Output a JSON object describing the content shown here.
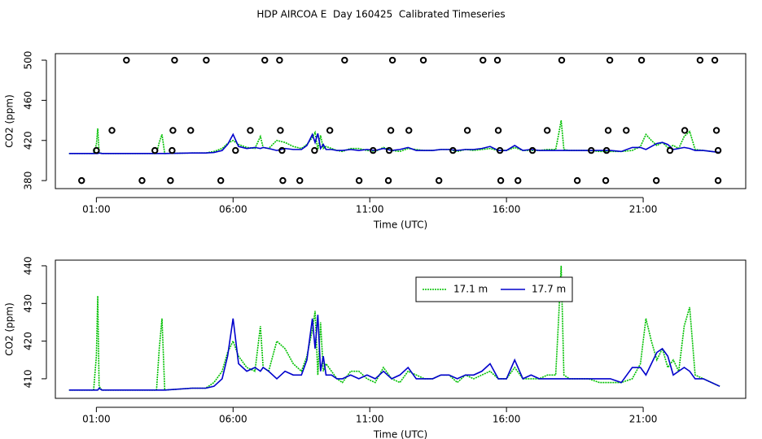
{
  "chart_data": [
    {
      "type": "line",
      "title": "HDP AIRCOA E  Day 160425  Calibrated Timeseries",
      "x_label": "Time (UTC)",
      "y_label": "CO2 (ppm)",
      "xlim": [
        -0.5,
        24.75
      ],
      "ylim": [
        372,
        506.5
      ],
      "xticks": [
        {
          "value": 1,
          "label": "01:00"
        },
        {
          "value": 6,
          "label": "06:00"
        },
        {
          "value": 11,
          "label": "11:00"
        },
        {
          "value": 16,
          "label": "16:00"
        },
        {
          "value": 21,
          "label": "21:00"
        }
      ],
      "yticks": [
        380,
        420,
        460,
        500
      ],
      "x": [
        0,
        0.9,
        1.0,
        1.05,
        1.1,
        1.2,
        2.5,
        3.2,
        3.3,
        3.4,
        3.5,
        4.5,
        5.0,
        5.3,
        5.6,
        5.8,
        6.0,
        6.2,
        6.5,
        6.8,
        7.0,
        7.1,
        7.3,
        7.6,
        7.9,
        8.2,
        8.5,
        8.7,
        8.9,
        9.0,
        9.1,
        9.2,
        9.3,
        9.4,
        9.6,
        9.8,
        10.0,
        10.3,
        10.6,
        10.9,
        11.2,
        11.5,
        11.8,
        12.1,
        12.4,
        12.7,
        13.0,
        13.3,
        13.6,
        13.9,
        14.2,
        14.5,
        14.8,
        15.1,
        15.4,
        15.7,
        16.0,
        16.3,
        16.6,
        16.9,
        17.2,
        17.5,
        17.8,
        17.9,
        18.0,
        18.1,
        18.3,
        18.6,
        19.0,
        19.4,
        19.8,
        20.2,
        20.6,
        20.9,
        21.1,
        21.3,
        21.5,
        21.7,
        21.9,
        22.1,
        22.3,
        22.5,
        22.7,
        22.9,
        23.2,
        23.5,
        23.8
      ],
      "series": [
        {
          "color": "#00c000",
          "values": [
            407,
            407,
            416,
            432,
            408,
            407,
            407,
            407,
            418,
            426,
            407,
            407.5,
            407.5,
            409,
            412,
            417,
            420,
            416,
            413,
            412,
            424,
            413,
            412,
            420,
            418,
            414,
            412,
            416,
            423,
            428,
            411,
            425,
            412,
            414,
            412,
            410,
            409,
            412,
            412,
            410,
            409,
            413,
            410,
            409,
            412,
            411,
            410,
            410,
            411,
            411,
            409,
            411,
            410,
            411,
            412,
            410,
            410,
            413,
            410,
            410,
            410,
            411,
            411,
            425,
            440,
            411,
            410,
            410,
            410,
            409,
            409,
            409,
            410,
            414,
            426,
            420,
            415,
            418,
            413,
            415,
            412,
            424,
            429,
            411,
            410,
            409,
            408
          ]
        },
        {
          "color": "#0000cc",
          "values": [
            407,
            407,
            407,
            407,
            407.5,
            407,
            407,
            407,
            407,
            407,
            407,
            407.5,
            407.5,
            408,
            410,
            416,
            426,
            414,
            412,
            413,
            412,
            413,
            412,
            410,
            412,
            411,
            411,
            415,
            426,
            418,
            427,
            412,
            416,
            411,
            411,
            410,
            410,
            411,
            410,
            411,
            410,
            412,
            410,
            411,
            413,
            410,
            410,
            410,
            411,
            411,
            410,
            411,
            411,
            412,
            414,
            410,
            410,
            415,
            410,
            411,
            410,
            410,
            410,
            410,
            410,
            410,
            410,
            410,
            410,
            410,
            410,
            409,
            413,
            413,
            411,
            414,
            417,
            418,
            416,
            411,
            412,
            413,
            412,
            410,
            410,
            409,
            408
          ]
        }
      ],
      "points": {
        "color": "#000000",
        "x": [
          2.1,
          3.86,
          5.02,
          7.16,
          7.7,
          10.08,
          11.83,
          12.96,
          15.14,
          15.67,
          18.02,
          19.78,
          20.94,
          23.08,
          23.62,
          1.57,
          3.8,
          4.45,
          6.63,
          7.73,
          9.54,
          11.77,
          12.43,
          14.57,
          15.7,
          17.49,
          19.72,
          20.38,
          22.52,
          23.68,
          1.0,
          3.14,
          3.77,
          6.09,
          7.79,
          8.98,
          11.12,
          11.71,
          14.04,
          15.76,
          16.95,
          19.1,
          19.66,
          21.98,
          23.74,
          0.46,
          2.67,
          3.71,
          5.55,
          7.82,
          8.44,
          10.61,
          11.68,
          13.53,
          15.79,
          16.42,
          18.59,
          19.63,
          21.48,
          23.74
        ],
        "values": [
          500,
          500,
          500,
          500,
          500,
          500,
          500,
          500,
          500,
          500,
          500,
          500,
          500,
          500,
          500,
          430,
          430,
          430,
          430,
          430,
          430,
          430,
          430,
          430,
          430,
          430,
          430,
          430,
          430,
          430,
          410,
          410,
          410,
          410,
          410,
          410,
          410,
          410,
          410,
          410,
          410,
          410,
          410,
          410,
          410,
          380,
          380,
          380,
          380,
          380,
          380,
          380,
          380,
          380,
          380,
          380,
          380,
          380,
          380,
          380
        ]
      }
    },
    {
      "type": "line",
      "x_label": "Time (UTC)",
      "y_label": "CO2 (ppm)",
      "xlim": [
        -0.5,
        24.75
      ],
      "ylim": [
        404.8,
        441.5
      ],
      "xticks": [
        {
          "value": 1,
          "label": "01:00"
        },
        {
          "value": 6,
          "label": "06:00"
        },
        {
          "value": 11,
          "label": "11:00"
        },
        {
          "value": 16,
          "label": "16:00"
        },
        {
          "value": 21,
          "label": "21:00"
        }
      ],
      "yticks": [
        410,
        420,
        430,
        440
      ],
      "legend": "top",
      "x": [
        0,
        0.9,
        1.0,
        1.05,
        1.1,
        1.2,
        2.5,
        3.2,
        3.3,
        3.4,
        3.5,
        4.5,
        5.0,
        5.3,
        5.6,
        5.8,
        6.0,
        6.2,
        6.5,
        6.8,
        7.0,
        7.1,
        7.3,
        7.6,
        7.9,
        8.2,
        8.5,
        8.7,
        8.9,
        9.0,
        9.1,
        9.2,
        9.3,
        9.4,
        9.6,
        9.8,
        10.0,
        10.3,
        10.6,
        10.9,
        11.2,
        11.5,
        11.8,
        12.1,
        12.4,
        12.7,
        13.0,
        13.3,
        13.6,
        13.9,
        14.2,
        14.5,
        14.8,
        15.1,
        15.4,
        15.7,
        16.0,
        16.3,
        16.6,
        16.9,
        17.2,
        17.5,
        17.8,
        17.9,
        18.0,
        18.1,
        18.3,
        18.6,
        19.0,
        19.4,
        19.8,
        20.2,
        20.6,
        20.9,
        21.1,
        21.3,
        21.5,
        21.7,
        21.9,
        22.1,
        22.3,
        22.5,
        22.7,
        22.9,
        23.2,
        23.5,
        23.8
      ],
      "series": [
        {
          "name": "17.1 m",
          "color": "#00c000",
          "values": [
            407,
            407,
            416,
            432,
            408,
            407,
            407,
            407,
            418,
            426,
            407,
            407.5,
            407.5,
            409,
            412,
            417,
            420,
            416,
            413,
            412,
            424,
            413,
            412,
            420,
            418,
            414,
            412,
            416,
            423,
            428,
            411,
            425,
            412,
            414,
            412,
            410,
            409,
            412,
            412,
            410,
            409,
            413,
            410,
            409,
            412,
            411,
            410,
            410,
            411,
            411,
            409,
            411,
            410,
            411,
            412,
            410,
            410,
            413,
            410,
            410,
            410,
            411,
            411,
            425,
            440,
            411,
            410,
            410,
            410,
            409,
            409,
            409,
            410,
            414,
            426,
            420,
            415,
            418,
            413,
            415,
            412,
            424,
            429,
            411,
            410,
            409,
            408
          ]
        },
        {
          "name": "17.7 m",
          "color": "#0000cc",
          "values": [
            407,
            407,
            407,
            407,
            407.5,
            407,
            407,
            407,
            407,
            407,
            407,
            407.5,
            407.5,
            408,
            410,
            416,
            426,
            414,
            412,
            413,
            412,
            413,
            412,
            410,
            412,
            411,
            411,
            415,
            426,
            418,
            427,
            412,
            416,
            411,
            411,
            410,
            410,
            411,
            410,
            411,
            410,
            412,
            410,
            411,
            413,
            410,
            410,
            410,
            411,
            411,
            410,
            411,
            411,
            412,
            414,
            410,
            410,
            415,
            410,
            411,
            410,
            410,
            410,
            410,
            410,
            410,
            410,
            410,
            410,
            410,
            410,
            409,
            413,
            413,
            411,
            414,
            417,
            418,
            416,
            411,
            412,
            413,
            412,
            410,
            410,
            409,
            408
          ]
        }
      ]
    }
  ]
}
